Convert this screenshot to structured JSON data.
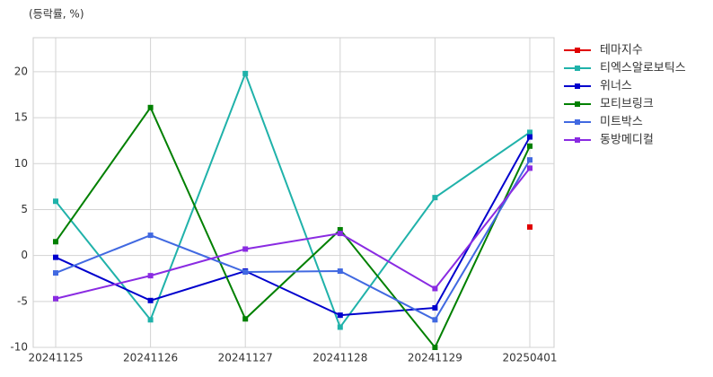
{
  "chart_data": {
    "type": "line",
    "y_label": "(등락률, %)",
    "categories": [
      "20241125",
      "20241126",
      "20241127",
      "20241128",
      "20241129",
      "20250401"
    ],
    "series": [
      {
        "name": "테마지수",
        "color": "#e00000",
        "values": [
          null,
          null,
          null,
          null,
          null,
          3.1
        ]
      },
      {
        "name": "티엑스알로보틱스",
        "color": "#20b2aa",
        "values": [
          5.9,
          -7.0,
          19.8,
          -7.8,
          6.3,
          13.4
        ]
      },
      {
        "name": "위너스",
        "color": "#0000cd",
        "values": [
          -0.2,
          -4.9,
          -1.7,
          -6.5,
          -5.7,
          12.9
        ]
      },
      {
        "name": "모티브링크",
        "color": "#008000",
        "values": [
          1.5,
          16.1,
          -6.9,
          2.8,
          -10.0,
          11.9
        ]
      },
      {
        "name": "미트박스",
        "color": "#4169e1",
        "values": [
          -1.9,
          2.2,
          -1.8,
          -1.7,
          -7.0,
          10.4
        ]
      },
      {
        "name": "동방메디컬",
        "color": "#8a2be2",
        "values": [
          -4.7,
          -2.2,
          0.7,
          2.4,
          -3.6,
          9.5
        ]
      }
    ],
    "ylim": [
      -10,
      23.7
    ],
    "yticks": [
      -10,
      -5,
      0,
      5,
      10,
      15,
      20
    ],
    "grid": true,
    "legend": "right"
  }
}
